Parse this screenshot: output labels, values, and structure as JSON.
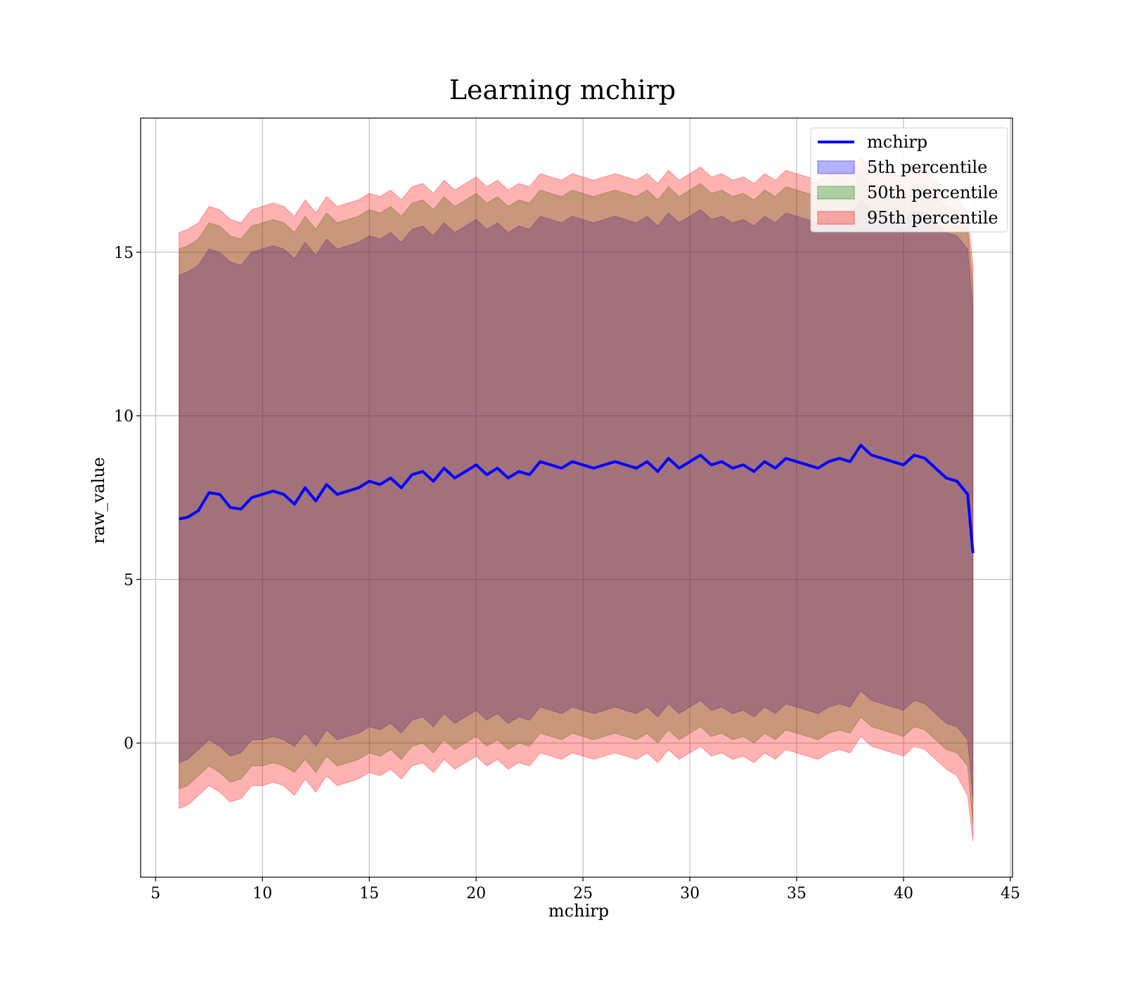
{
  "chart_data": {
    "type": "area",
    "title": "Learning mchirp",
    "xlabel": "mchirp",
    "ylabel": "raw_value",
    "xlim": [
      4.3,
      45.1
    ],
    "ylim": [
      -4.1,
      19.1
    ],
    "xticks": [
      5,
      10,
      15,
      20,
      25,
      30,
      35,
      40,
      45
    ],
    "yticks": [
      0,
      5,
      10,
      15
    ],
    "grid": true,
    "legend_position": "top-right",
    "x": [
      6.1,
      6.5,
      7.0,
      7.5,
      8.0,
      8.5,
      9.0,
      9.5,
      10.0,
      10.5,
      11.0,
      11.5,
      12.0,
      12.5,
      13.0,
      13.5,
      14.0,
      14.5,
      15.0,
      15.5,
      16.0,
      16.5,
      17.0,
      17.5,
      18.0,
      18.5,
      19.0,
      19.5,
      20.0,
      20.5,
      21.0,
      21.5,
      22.0,
      22.5,
      23.0,
      23.5,
      24.0,
      24.5,
      25.0,
      25.5,
      26.0,
      26.5,
      27.0,
      27.5,
      28.0,
      28.5,
      29.0,
      29.5,
      30.0,
      30.5,
      31.0,
      31.5,
      32.0,
      32.5,
      33.0,
      33.5,
      34.0,
      34.5,
      35.0,
      35.5,
      36.0,
      36.5,
      37.0,
      37.5,
      38.0,
      38.5,
      39.0,
      39.5,
      40.0,
      40.5,
      41.0,
      41.5,
      42.0,
      42.5,
      43.0,
      43.25
    ],
    "series": [
      {
        "name": "mchirp",
        "color": "#0000ff",
        "style": "line",
        "values": [
          6.85,
          6.9,
          7.1,
          7.65,
          7.6,
          7.2,
          7.15,
          7.5,
          7.6,
          7.7,
          7.6,
          7.3,
          7.8,
          7.4,
          7.9,
          7.6,
          7.7,
          7.8,
          8.0,
          7.9,
          8.1,
          7.8,
          8.2,
          8.3,
          8.0,
          8.4,
          8.1,
          8.3,
          8.5,
          8.2,
          8.4,
          8.1,
          8.3,
          8.2,
          8.6,
          8.5,
          8.4,
          8.6,
          8.5,
          8.4,
          8.5,
          8.6,
          8.5,
          8.4,
          8.6,
          8.3,
          8.7,
          8.4,
          8.6,
          8.8,
          8.5,
          8.6,
          8.4,
          8.5,
          8.3,
          8.6,
          8.4,
          8.7,
          8.6,
          8.5,
          8.4,
          8.6,
          8.7,
          8.6,
          9.1,
          8.8,
          8.7,
          8.6,
          8.5,
          8.8,
          8.7,
          8.4,
          8.1,
          8.0,
          7.6,
          5.8
        ]
      },
      {
        "name": "5th percentile",
        "color": "#0000ff",
        "opacity": 0.3,
        "style": "band",
        "lower": [
          -0.6,
          -0.5,
          -0.2,
          0.1,
          -0.1,
          -0.4,
          -0.3,
          0.1,
          0.1,
          0.2,
          0.1,
          -0.1,
          0.3,
          -0.1,
          0.4,
          0.1,
          0.2,
          0.3,
          0.5,
          0.4,
          0.6,
          0.3,
          0.7,
          0.8,
          0.5,
          0.9,
          0.6,
          0.8,
          1.0,
          0.7,
          0.9,
          0.6,
          0.8,
          0.7,
          1.1,
          1.0,
          0.9,
          1.1,
          1.0,
          0.9,
          1.0,
          1.1,
          1.0,
          0.9,
          1.1,
          0.8,
          1.2,
          0.9,
          1.1,
          1.3,
          1.0,
          1.1,
          0.9,
          1.0,
          0.8,
          1.1,
          0.9,
          1.2,
          1.1,
          1.0,
          0.9,
          1.1,
          1.2,
          1.1,
          1.6,
          1.3,
          1.2,
          1.1,
          1.0,
          1.3,
          1.2,
          0.9,
          0.6,
          0.5,
          0.1,
          -1.7
        ],
        "upper": [
          14.3,
          14.4,
          14.6,
          15.1,
          15.0,
          14.7,
          14.6,
          15.0,
          15.1,
          15.2,
          15.1,
          14.8,
          15.3,
          14.9,
          15.4,
          15.1,
          15.2,
          15.3,
          15.5,
          15.4,
          15.6,
          15.3,
          15.7,
          15.8,
          15.5,
          15.9,
          15.6,
          15.8,
          16.0,
          15.7,
          15.9,
          15.6,
          15.8,
          15.7,
          16.1,
          16.0,
          15.9,
          16.1,
          16.0,
          15.9,
          16.0,
          16.1,
          16.0,
          15.9,
          16.1,
          15.8,
          16.2,
          15.9,
          16.1,
          16.3,
          16.0,
          16.1,
          15.9,
          16.0,
          15.8,
          16.1,
          15.9,
          16.2,
          16.1,
          16.0,
          15.9,
          16.1,
          16.2,
          16.1,
          16.6,
          16.3,
          16.2,
          16.1,
          16.0,
          16.3,
          16.2,
          15.9,
          15.6,
          15.5,
          15.1,
          13.3
        ]
      },
      {
        "name": "50th percentile",
        "color": "#008000",
        "opacity": 0.3,
        "style": "band",
        "lower": [
          -1.4,
          -1.3,
          -1.0,
          -0.7,
          -0.9,
          -1.2,
          -1.1,
          -0.7,
          -0.7,
          -0.6,
          -0.7,
          -0.9,
          -0.5,
          -0.9,
          -0.4,
          -0.7,
          -0.6,
          -0.5,
          -0.3,
          -0.4,
          -0.2,
          -0.5,
          -0.1,
          0.0,
          -0.3,
          0.1,
          -0.2,
          0.0,
          0.2,
          -0.1,
          0.1,
          -0.2,
          0.0,
          -0.1,
          0.3,
          0.2,
          0.1,
          0.3,
          0.2,
          0.1,
          0.2,
          0.3,
          0.2,
          0.1,
          0.3,
          0.0,
          0.4,
          0.1,
          0.3,
          0.5,
          0.2,
          0.3,
          0.1,
          0.2,
          0.0,
          0.3,
          0.1,
          0.4,
          0.3,
          0.2,
          0.1,
          0.3,
          0.4,
          0.3,
          0.8,
          0.5,
          0.4,
          0.3,
          0.2,
          0.5,
          0.4,
          0.1,
          -0.2,
          -0.3,
          -0.7,
          -2.5
        ],
        "upper": [
          15.1,
          15.2,
          15.4,
          15.9,
          15.8,
          15.5,
          15.4,
          15.8,
          15.9,
          16.0,
          15.9,
          15.6,
          16.1,
          15.7,
          16.2,
          15.9,
          16.0,
          16.1,
          16.3,
          16.2,
          16.4,
          16.1,
          16.5,
          16.6,
          16.3,
          16.7,
          16.4,
          16.6,
          16.8,
          16.5,
          16.7,
          16.4,
          16.6,
          16.5,
          16.9,
          16.8,
          16.7,
          16.9,
          16.8,
          16.7,
          16.8,
          16.9,
          16.8,
          16.7,
          16.9,
          16.6,
          17.0,
          16.7,
          16.9,
          17.1,
          16.8,
          16.9,
          16.7,
          16.8,
          16.6,
          16.9,
          16.7,
          17.0,
          16.9,
          16.8,
          16.7,
          16.9,
          17.0,
          16.9,
          17.4,
          17.1,
          17.0,
          16.9,
          16.8,
          17.1,
          17.0,
          16.7,
          16.4,
          16.3,
          15.7,
          14.0
        ]
      },
      {
        "name": "95th percentile",
        "color": "#ff0000",
        "opacity": 0.3,
        "style": "band",
        "lower": [
          -2.0,
          -1.9,
          -1.6,
          -1.3,
          -1.5,
          -1.8,
          -1.7,
          -1.3,
          -1.3,
          -1.2,
          -1.3,
          -1.6,
          -1.1,
          -1.5,
          -1.0,
          -1.3,
          -1.2,
          -1.1,
          -0.9,
          -1.0,
          -0.8,
          -1.1,
          -0.7,
          -0.6,
          -0.9,
          -0.5,
          -0.8,
          -0.6,
          -0.4,
          -0.7,
          -0.5,
          -0.8,
          -0.6,
          -0.7,
          -0.3,
          -0.4,
          -0.5,
          -0.3,
          -0.4,
          -0.5,
          -0.4,
          -0.3,
          -0.4,
          -0.5,
          -0.3,
          -0.6,
          -0.2,
          -0.5,
          -0.3,
          -0.1,
          -0.4,
          -0.3,
          -0.5,
          -0.4,
          -0.6,
          -0.3,
          -0.5,
          -0.2,
          -0.3,
          -0.4,
          -0.5,
          -0.3,
          -0.2,
          -0.3,
          0.2,
          -0.1,
          -0.2,
          -0.3,
          -0.4,
          -0.1,
          -0.2,
          -0.5,
          -0.8,
          -1.0,
          -1.6,
          -3.0
        ],
        "upper": [
          15.6,
          15.7,
          15.9,
          16.4,
          16.3,
          16.0,
          15.9,
          16.3,
          16.4,
          16.5,
          16.4,
          16.1,
          16.6,
          16.2,
          16.7,
          16.4,
          16.5,
          16.6,
          16.8,
          16.7,
          16.9,
          16.6,
          17.0,
          17.1,
          16.8,
          17.2,
          16.9,
          17.1,
          17.3,
          17.0,
          17.2,
          16.9,
          17.1,
          17.0,
          17.4,
          17.3,
          17.2,
          17.4,
          17.3,
          17.2,
          17.3,
          17.4,
          17.3,
          17.2,
          17.4,
          17.1,
          17.5,
          17.2,
          17.4,
          17.6,
          17.3,
          17.4,
          17.2,
          17.3,
          17.1,
          17.4,
          17.2,
          17.5,
          17.4,
          17.3,
          17.2,
          17.4,
          17.5,
          17.4,
          17.9,
          17.6,
          17.5,
          17.4,
          17.3,
          17.6,
          17.5,
          17.2,
          16.9,
          16.7,
          16.2,
          14.6
        ]
      }
    ]
  }
}
